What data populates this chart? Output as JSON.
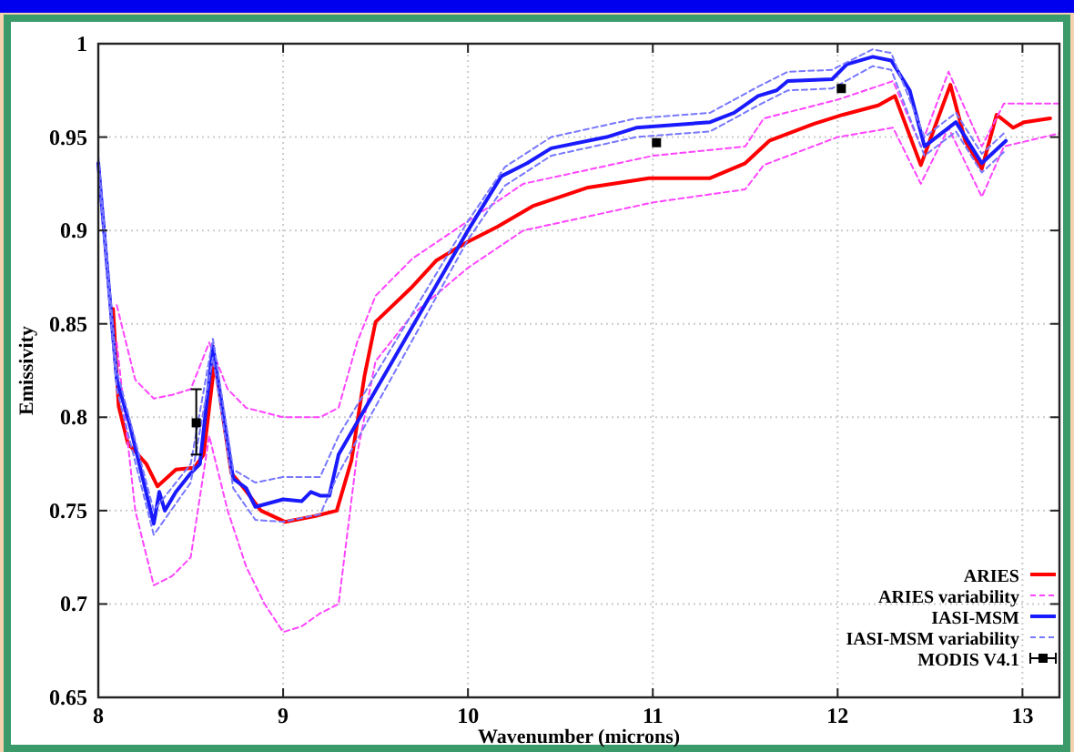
{
  "chart_data": {
    "type": "line",
    "xlabel": "Wavenumber (microns)",
    "ylabel": "Emissivity",
    "xlim": [
      8,
      13.2
    ],
    "ylim": [
      0.65,
      1
    ],
    "xticks": [
      8,
      9,
      10,
      11,
      12,
      13
    ],
    "yticks": [
      0.65,
      0.7,
      0.75,
      0.8,
      0.85,
      0.9,
      0.95,
      1
    ],
    "grid": true,
    "legend": "bottom right",
    "series": [
      {
        "name": "ARIES",
        "line_style": "solid",
        "color": "#ff0000",
        "x": [
          8.08,
          8.11,
          8.16,
          8.26,
          8.32,
          8.42,
          8.52,
          8.57,
          8.63,
          8.72,
          8.78,
          8.88,
          9.01,
          9.17,
          9.29,
          9.37,
          9.44,
          9.5,
          9.7,
          9.83,
          10.0,
          10.16,
          10.35,
          10.65,
          10.98,
          11.31,
          11.5,
          11.63,
          11.87,
          12.03,
          12.22,
          12.31,
          12.45,
          12.61,
          12.69,
          12.78,
          12.86,
          12.95,
          13.01,
          13.15
        ],
        "values": [
          0.858,
          0.806,
          0.786,
          0.775,
          0.763,
          0.772,
          0.773,
          0.78,
          0.83,
          0.77,
          0.763,
          0.75,
          0.744,
          0.747,
          0.75,
          0.777,
          0.822,
          0.851,
          0.87,
          0.884,
          0.894,
          0.902,
          0.913,
          0.923,
          0.928,
          0.928,
          0.936,
          0.948,
          0.957,
          0.962,
          0.967,
          0.972,
          0.935,
          0.978,
          0.948,
          0.933,
          0.962,
          0.955,
          0.958,
          0.96
        ]
      },
      {
        "name": "ARIES variability",
        "line_style": "dashed",
        "color": "#ff44ff",
        "x": [
          8.1,
          8.2,
          8.3,
          8.4,
          8.5,
          8.6,
          8.7,
          8.8,
          9.0,
          9.2,
          9.3,
          9.4,
          9.5,
          9.7,
          10.0,
          10.3,
          11.0,
          11.5,
          11.6,
          12.0,
          12.3,
          12.45,
          12.6,
          12.78,
          12.9,
          13.2
        ],
        "values": [
          0.86,
          0.82,
          0.81,
          0.812,
          0.815,
          0.84,
          0.815,
          0.805,
          0.8,
          0.8,
          0.805,
          0.84,
          0.865,
          0.885,
          0.905,
          0.925,
          0.94,
          0.945,
          0.96,
          0.97,
          0.98,
          0.945,
          0.985,
          0.945,
          0.968,
          0.968
        ]
      },
      {
        "line_style": "dashed",
        "color": "#ff44ff",
        "x": [
          8.1,
          8.2,
          8.3,
          8.4,
          8.5,
          8.6,
          8.7,
          8.8,
          8.9,
          9.0,
          9.1,
          9.2,
          9.3,
          9.4,
          9.5,
          9.7,
          10.0,
          10.3,
          11.0,
          11.5,
          11.6,
          12.0,
          12.3,
          12.45,
          12.6,
          12.78,
          12.9,
          13.2
        ],
        "values": [
          0.84,
          0.75,
          0.71,
          0.715,
          0.725,
          0.79,
          0.75,
          0.72,
          0.7,
          0.685,
          0.688,
          0.695,
          0.7,
          0.78,
          0.83,
          0.855,
          0.88,
          0.9,
          0.915,
          0.922,
          0.935,
          0.95,
          0.955,
          0.925,
          0.955,
          0.918,
          0.945,
          0.952
        ]
      },
      {
        "name": "IASI-MSM",
        "line_style": "solid",
        "color": "#1a1aff",
        "x": [
          8.0,
          8.1,
          8.17,
          8.3,
          8.33,
          8.36,
          8.42,
          8.5,
          8.55,
          8.62,
          8.73,
          8.8,
          8.85,
          9.0,
          9.1,
          9.15,
          9.2,
          9.25,
          9.3,
          10.0,
          10.18,
          10.32,
          10.45,
          10.75,
          10.91,
          11.18,
          11.31,
          11.44,
          11.57,
          11.67,
          11.73,
          11.97,
          12.05,
          12.19,
          12.29,
          12.39,
          12.47,
          12.64,
          12.78,
          12.91
        ],
        "values": [
          0.936,
          0.82,
          0.796,
          0.743,
          0.76,
          0.75,
          0.76,
          0.77,
          0.775,
          0.838,
          0.767,
          0.762,
          0.752,
          0.756,
          0.755,
          0.76,
          0.758,
          0.758,
          0.78,
          0.9,
          0.929,
          0.936,
          0.944,
          0.95,
          0.955,
          0.957,
          0.958,
          0.963,
          0.972,
          0.975,
          0.98,
          0.981,
          0.989,
          0.993,
          0.991,
          0.975,
          0.945,
          0.958,
          0.936,
          0.948
        ]
      },
      {
        "name": "IASI-MSM variability",
        "line_style": "dashed",
        "color": "#7777ff",
        "x": [
          8.0,
          8.1,
          8.3,
          8.5,
          8.62,
          8.73,
          8.85,
          9.0,
          9.2,
          9.3,
          10.0,
          10.2,
          10.45,
          10.91,
          11.31,
          11.57,
          11.73,
          11.97,
          12.19,
          12.29,
          12.47,
          12.64,
          12.78,
          12.91
        ],
        "values": [
          0.94,
          0.825,
          0.75,
          0.775,
          0.842,
          0.772,
          0.765,
          0.768,
          0.768,
          0.79,
          0.905,
          0.934,
          0.95,
          0.96,
          0.963,
          0.977,
          0.985,
          0.986,
          0.997,
          0.995,
          0.95,
          0.963,
          0.941,
          0.953
        ]
      },
      {
        "line_style": "dashed",
        "color": "#7777ff",
        "x": [
          8.0,
          8.1,
          8.3,
          8.5,
          8.62,
          8.73,
          8.85,
          9.0,
          9.2,
          9.3,
          10.0,
          10.2,
          10.45,
          10.91,
          11.31,
          11.57,
          11.73,
          11.97,
          12.19,
          12.29,
          12.47,
          12.64,
          12.78,
          12.91
        ],
        "values": [
          0.932,
          0.815,
          0.737,
          0.765,
          0.832,
          0.762,
          0.745,
          0.744,
          0.748,
          0.77,
          0.895,
          0.924,
          0.94,
          0.95,
          0.953,
          0.967,
          0.975,
          0.976,
          0.988,
          0.986,
          0.94,
          0.953,
          0.931,
          0.943
        ]
      },
      {
        "name": "MODIS V4.1",
        "type": "scatter",
        "marker": "square",
        "color": "#000000",
        "x": [
          8.53,
          11.02,
          12.02
        ],
        "values": [
          0.797,
          0.947,
          0.976
        ],
        "errors": [
          [
            0.78,
            0.815
          ],
          null,
          null
        ]
      }
    ]
  }
}
